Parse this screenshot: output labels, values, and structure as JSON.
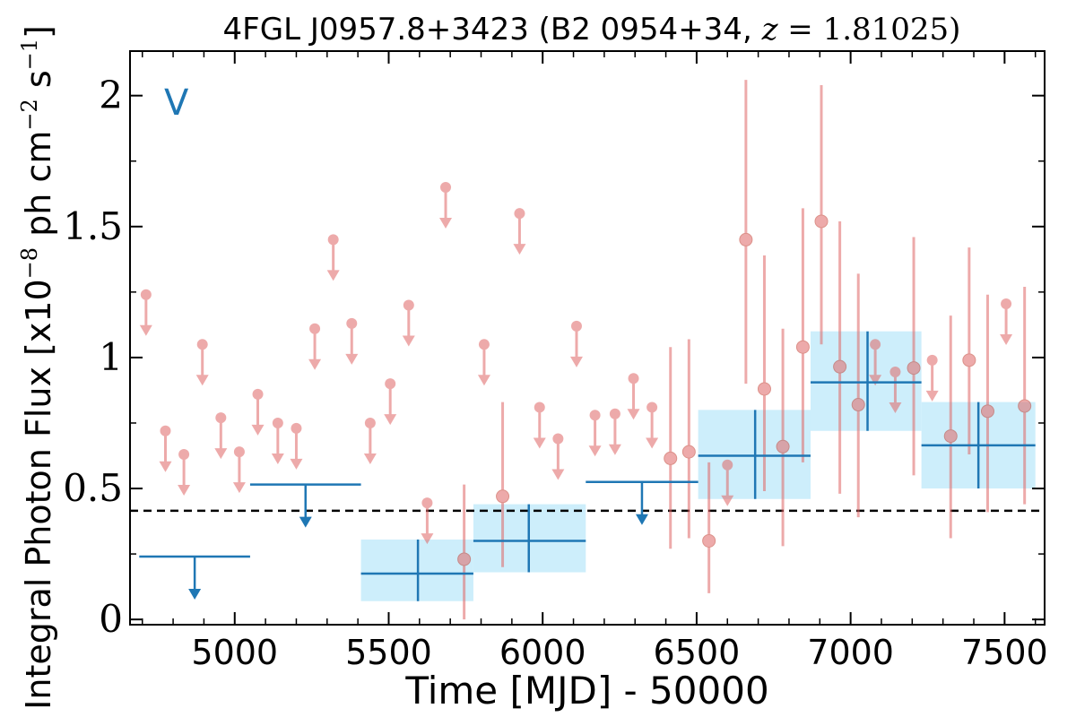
{
  "chart_data": {
    "type": "scatter",
    "title": "4FGL J0957.8+3423 (B2 0954+34, z = 1.81025)",
    "title_parts": {
      "name": "4FGL J0957.8+3423 (B2 0954+34, ",
      "z_symbol": "z",
      "z_value": " = 1.81025)"
    },
    "xlabel": "Time [MJD] - 50000",
    "ylabel": "Integral Photon Flux [x10",
    "ylabel_exp": "−8",
    "ylabel_unit": " ph cm",
    "ylabel_unit_exp": "−2",
    "ylabel_end": " s",
    "ylabel_end_exp": "−1",
    "ylabel_close": "]",
    "panel_label": "V",
    "xlim": [
      4660,
      7630
    ],
    "ylim": [
      -0.02,
      2.17
    ],
    "xticks": [
      5000,
      5500,
      6000,
      6500,
      7000,
      7500
    ],
    "yticks": [
      0,
      0.5,
      1,
      1.5,
      2
    ],
    "ytick_labels": [
      "0",
      "0.5",
      "1",
      "1.5",
      "2"
    ],
    "reference_line": {
      "y": 0.415,
      "style": "dashed"
    },
    "colors": {
      "fine_points": "#e06666",
      "coarse_bins": "#1f77b4",
      "coarse_box": "#cdeefb",
      "ref_line": "#000000",
      "panel_label": "#1f77b4"
    },
    "coarse_upper_limits": [
      {
        "x0": 4690,
        "x1": 5050,
        "y": 0.24
      },
      {
        "x0": 5050,
        "x1": 5410,
        "y": 0.515
      },
      {
        "x0": 6140,
        "x1": 6505,
        "y": 0.525
      }
    ],
    "coarse_detections": [
      {
        "x": 5595,
        "x0": 5410,
        "x1": 5775,
        "y": 0.175,
        "ylo": 0.07,
        "yhi": 0.305
      },
      {
        "x": 5955,
        "x0": 5775,
        "x1": 6140,
        "y": 0.3,
        "ylo": 0.18,
        "yhi": 0.44
      },
      {
        "x": 6690,
        "x0": 6505,
        "x1": 6870,
        "y": 0.625,
        "ylo": 0.46,
        "yhi": 0.8
      },
      {
        "x": 7055,
        "x0": 6870,
        "x1": 7230,
        "y": 0.905,
        "ylo": 0.72,
        "yhi": 1.1
      },
      {
        "x": 7415,
        "x0": 7230,
        "x1": 7600,
        "y": 0.665,
        "ylo": 0.5,
        "yhi": 0.83
      }
    ],
    "fine_upper_limits": [
      {
        "x": 4712,
        "y": 1.24
      },
      {
        "x": 4775,
        "y": 0.72
      },
      {
        "x": 4835,
        "y": 0.63
      },
      {
        "x": 4895,
        "y": 1.05
      },
      {
        "x": 4955,
        "y": 0.77
      },
      {
        "x": 5015,
        "y": 0.64
      },
      {
        "x": 5075,
        "y": 0.86
      },
      {
        "x": 5140,
        "y": 0.75
      },
      {
        "x": 5200,
        "y": 0.73
      },
      {
        "x": 5260,
        "y": 1.11
      },
      {
        "x": 5320,
        "y": 1.45
      },
      {
        "x": 5380,
        "y": 1.13
      },
      {
        "x": 5440,
        "y": 0.75
      },
      {
        "x": 5505,
        "y": 0.9
      },
      {
        "x": 5565,
        "y": 1.2
      },
      {
        "x": 5625,
        "y": 0.445
      },
      {
        "x": 5685,
        "y": 1.65
      },
      {
        "x": 5810,
        "y": 1.05
      },
      {
        "x": 5925,
        "y": 1.55
      },
      {
        "x": 5990,
        "y": 0.81
      },
      {
        "x": 6050,
        "y": 0.69
      },
      {
        "x": 6110,
        "y": 1.12
      },
      {
        "x": 6170,
        "y": 0.78
      },
      {
        "x": 6235,
        "y": 0.785
      },
      {
        "x": 6295,
        "y": 0.92
      },
      {
        "x": 6355,
        "y": 0.81
      },
      {
        "x": 6600,
        "y": 0.59
      },
      {
        "x": 7080,
        "y": 1.05
      },
      {
        "x": 7145,
        "y": 0.945
      },
      {
        "x": 7265,
        "y": 0.99
      },
      {
        "x": 7505,
        "y": 1.205
      }
    ],
    "fine_detections": [
      {
        "x": 5745,
        "y": 0.23,
        "ylo": 0.0,
        "yhi": 0.515
      },
      {
        "x": 5870,
        "y": 0.47,
        "ylo": 0.2,
        "yhi": 0.83
      },
      {
        "x": 6415,
        "y": 0.615,
        "ylo": 0.27,
        "yhi": 1.04
      },
      {
        "x": 6475,
        "y": 0.64,
        "ylo": 0.31,
        "yhi": 1.07
      },
      {
        "x": 6540,
        "y": 0.3,
        "ylo": 0.1,
        "yhi": 0.6
      },
      {
        "x": 6660,
        "y": 1.45,
        "ylo": 0.9,
        "yhi": 2.06
      },
      {
        "x": 6720,
        "y": 0.88,
        "ylo": 0.49,
        "yhi": 1.39
      },
      {
        "x": 6780,
        "y": 0.66,
        "ylo": 0.28,
        "yhi": 1.11
      },
      {
        "x": 6845,
        "y": 1.04,
        "ylo": 0.6,
        "yhi": 1.57
      },
      {
        "x": 6905,
        "y": 1.52,
        "ylo": 1.05,
        "yhi": 2.04
      },
      {
        "x": 6965,
        "y": 0.965,
        "ylo": 0.48,
        "yhi": 1.52
      },
      {
        "x": 7025,
        "y": 0.82,
        "ylo": 0.39,
        "yhi": 1.32
      },
      {
        "x": 7205,
        "y": 0.96,
        "ylo": 0.55,
        "yhi": 1.46
      },
      {
        "x": 7325,
        "y": 0.7,
        "ylo": 0.31,
        "yhi": 1.16
      },
      {
        "x": 7385,
        "y": 0.99,
        "ylo": 0.63,
        "yhi": 1.42
      },
      {
        "x": 7445,
        "y": 0.795,
        "ylo": 0.41,
        "yhi": 1.24
      },
      {
        "x": 7565,
        "y": 0.815,
        "ylo": 0.44,
        "yhi": 1.27
      }
    ]
  }
}
